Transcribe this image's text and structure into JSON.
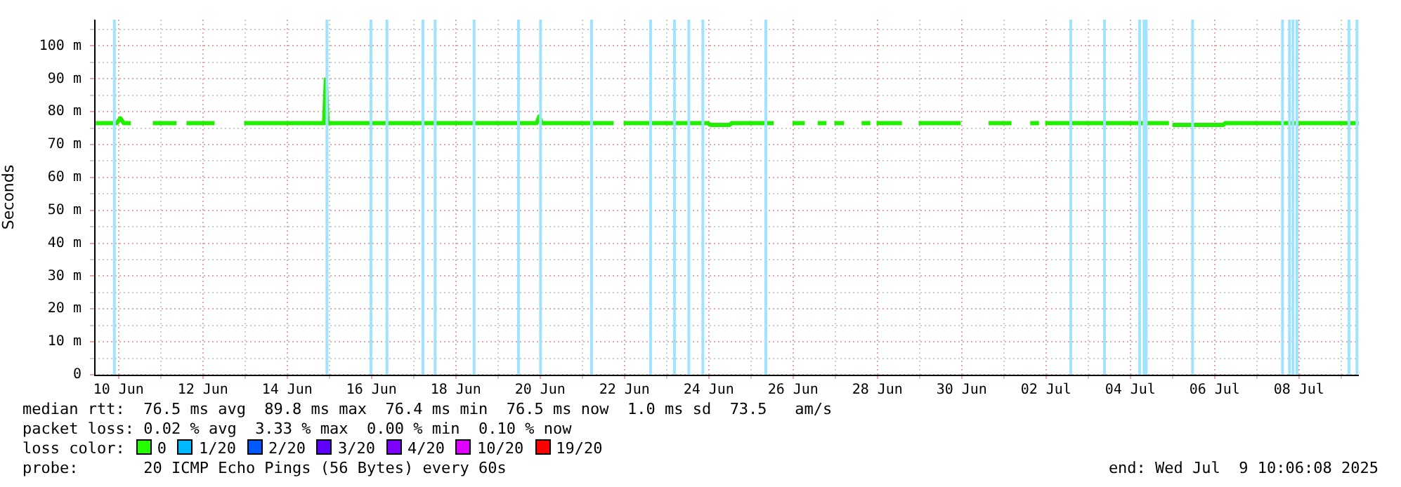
{
  "chart_data": {
    "type": "line",
    "ylabel": "Seconds",
    "xlim": [
      "--06-09T10:06",
      "--07-09T10:06"
    ],
    "xticks": [
      {
        "value": "--06-10",
        "label": "10 Jun"
      },
      {
        "value": "--06-11",
        "label": null
      },
      {
        "value": "--06-12",
        "label": "12 Jun"
      },
      {
        "value": "--06-13",
        "label": null
      },
      {
        "value": "--06-14",
        "label": "14 Jun"
      },
      {
        "value": "--06-15",
        "label": null
      },
      {
        "value": "--06-16",
        "label": "16 Jun"
      },
      {
        "value": "--06-17",
        "label": null
      },
      {
        "value": "--06-18",
        "label": "18 Jun"
      },
      {
        "value": "--06-19",
        "label": null
      },
      {
        "value": "--06-20",
        "label": "20 Jun"
      },
      {
        "value": "--06-21",
        "label": null
      },
      {
        "value": "--06-22",
        "label": "22 Jun"
      },
      {
        "value": "--06-23",
        "label": null
      },
      {
        "value": "--06-24",
        "label": "24 Jun"
      },
      {
        "value": "--06-25",
        "label": null
      },
      {
        "value": "--06-26",
        "label": "26 Jun"
      },
      {
        "value": "--06-27",
        "label": null
      },
      {
        "value": "--06-28",
        "label": "28 Jun"
      },
      {
        "value": "--06-29",
        "label": null
      },
      {
        "value": "--06-30",
        "label": "30 Jun"
      },
      {
        "value": "--07-01",
        "label": null
      },
      {
        "value": "--07-02",
        "label": "02 Jul"
      },
      {
        "value": "--07-03",
        "label": null
      },
      {
        "value": "--07-04",
        "label": "04 Jul"
      },
      {
        "value": "--07-05",
        "label": null
      },
      {
        "value": "--07-06",
        "label": "06 Jul"
      },
      {
        "value": "--07-07",
        "label": null
      },
      {
        "value": "--07-08",
        "label": "08 Jul"
      },
      {
        "value": "--07-09",
        "label": null
      }
    ],
    "ylim": [
      0,
      108
    ],
    "yticks": [
      0,
      {
        "value": 5,
        "label": null
      },
      {
        "value": 10,
        "label": "10 m"
      },
      {
        "value": 15,
        "label": null
      },
      {
        "value": 20,
        "label": "20 m"
      },
      {
        "value": 25,
        "label": null
      },
      {
        "value": 30,
        "label": "30 m"
      },
      {
        "value": 35,
        "label": null
      },
      {
        "value": 40,
        "label": "40 m"
      },
      {
        "value": 45,
        "label": null
      },
      {
        "value": 50,
        "label": "50 m"
      },
      {
        "value": 55,
        "label": null
      },
      {
        "value": 60,
        "label": "60 m"
      },
      {
        "value": 65,
        "label": null
      },
      {
        "value": 70,
        "label": "70 m"
      },
      {
        "value": 75,
        "label": null
      },
      {
        "value": 80,
        "label": "80 m"
      },
      {
        "value": 85,
        "label": null
      },
      {
        "value": 90,
        "label": "90 m"
      },
      {
        "value": 95,
        "label": null
      },
      {
        "value": 100,
        "label": "100 m"
      },
      {
        "value": 105,
        "label": null
      }
    ],
    "grid": true,
    "series": [
      {
        "color": "#22ee00",
        "x": [
          "--06-09T11:00",
          "--06-09T23:00",
          "--06-10T01:00",
          "--06-10T03:00",
          "--06-10T07:00",
          "--06-10T12:00",
          "--06-10T19:30",
          "--06-11T09:00",
          "--06-11T11:00",
          "--06-11T14:40",
          "--06-12T06:40",
          "--06-12T12:00",
          "--06-12T23:30",
          "--06-14T21:00",
          "--06-14T22:00",
          "--06-14T23:00",
          "--06-19T22:00",
          "--06-19T23:30",
          "--06-20T01:00",
          "--06-21T17:50",
          "--06-21T20:00",
          "--06-21T23:30",
          "--06-23T23:30",
          "--06-24T01:00",
          "--06-24T12:00",
          "--06-24T13:00",
          "--06-25T13:00",
          "--06-25T18:00",
          "--06-25T23:40",
          "--06-26T06:40",
          "--06-26T11:00",
          "--06-26T14:00",
          "--06-26T19:00",
          "--06-26T21:00",
          "--06-26T23:30",
          "--06-27T05:00",
          "--06-27T11:00",
          "--06-27T15:00",
          "--06-27T20:00",
          "--06-27T21:30",
          "--06-27T23:30",
          "--06-28T14:00",
          "--06-28T18:00",
          "--06-28T23:30",
          "--06-29T23:30",
          "--06-30T08:00",
          "--06-30T15:20",
          "--07-01T04:20",
          "--07-01T10:00",
          "--07-01T15:00",
          "--07-01T20:00",
          "--07-01T21:30",
          "--07-01T23:30",
          "--07-04T22:00",
          "--07-04T23:00",
          "--07-05T00:00",
          "--07-06T05:00",
          "--07-06T06:00",
          "--07-09T10:00"
        ],
        "values": [
          76.5,
          76.5,
          78,
          76.5,
          76.5,
          null,
          76.5,
          76.5,
          null,
          76.5,
          76.5,
          null,
          76.5,
          76.5,
          89.8,
          76.5,
          76.5,
          78.5,
          76.5,
          76.5,
          null,
          76.5,
          76.5,
          76,
          76,
          76.5,
          76.5,
          null,
          76.5,
          76.5,
          null,
          76.5,
          76.5,
          null,
          76.5,
          76.5,
          null,
          76.5,
          76.5,
          null,
          76.5,
          76.5,
          null,
          76.5,
          76.5,
          null,
          76.5,
          76.5,
          null,
          76.5,
          76.5,
          null,
          76.5,
          76.5,
          null,
          76,
          76,
          76.5,
          76.5
        ]
      }
    ],
    "ref_lines": [
      {
        "axis": "x",
        "value": "--06-09T21:36",
        "color": "#9fe3ff"
      },
      {
        "axis": "x",
        "value": "--06-14T22:38",
        "color": "#9fe3ff"
      },
      {
        "axis": "x",
        "value": "--06-15T23:41",
        "color": "#9fe3ff"
      },
      {
        "axis": "x",
        "value": "--06-16T08:48",
        "color": "#9fe3ff"
      },
      {
        "axis": "x",
        "value": "--06-17T05:17",
        "color": "#9fe3ff"
      },
      {
        "axis": "x",
        "value": "--06-17T12:14",
        "color": "#9fe3ff"
      },
      {
        "axis": "x",
        "value": "--06-18T10:24",
        "color": "#9fe3ff"
      },
      {
        "axis": "x",
        "value": "--06-19T11:41",
        "color": "#9fe3ff"
      },
      {
        "axis": "x",
        "value": "--06-20T00:14",
        "color": "#9fe3ff"
      },
      {
        "axis": "x",
        "value": "--06-21T05:17",
        "color": "#9fe3ff"
      },
      {
        "axis": "x",
        "value": "--06-22T14:53",
        "color": "#9fe3ff"
      },
      {
        "axis": "x",
        "value": "--06-23T04:29",
        "color": "#9fe3ff"
      },
      {
        "axis": "x",
        "value": "--06-23T12:39",
        "color": "#9fe3ff"
      },
      {
        "axis": "x",
        "value": "--06-23T20:38",
        "color": "#9fe3ff"
      },
      {
        "axis": "x",
        "value": "--06-25T08:29",
        "color": "#9fe3ff"
      },
      {
        "axis": "x",
        "value": "--07-02T14:05",
        "color": "#9fe3ff"
      },
      {
        "axis": "x",
        "value": "--07-03T09:17",
        "color": "#9fe3ff"
      },
      {
        "axis": "x",
        "value": "--07-04T05:17",
        "color": "#9fe3ff"
      },
      {
        "axis": "x",
        "value": "--07-04T07:50",
        "color": "#9fe3ff"
      },
      {
        "axis": "x",
        "value": "--07-04T09:02",
        "color": "#9fe3ff"
      },
      {
        "axis": "x",
        "value": "--07-05T11:26",
        "color": "#9fe3ff"
      },
      {
        "axis": "x",
        "value": "--07-07T14:38",
        "color": "#9fe3ff"
      },
      {
        "axis": "x",
        "value": "--07-07T18:38",
        "color": "#9fe3ff"
      },
      {
        "axis": "x",
        "value": "--07-07T20:38",
        "color": "#9fe3ff"
      },
      {
        "axis": "x",
        "value": "--07-07T22:53",
        "color": "#9fe3ff"
      },
      {
        "axis": "x",
        "value": "--07-09T04:29",
        "color": "#9fe3ff"
      },
      {
        "axis": "x",
        "value": "--07-09T09:02",
        "color": "#9fe3ff"
      }
    ],
    "annotations": [
      "median rtt:  76.5 ms avg  89.8 ms max  76.4 ms min  76.5 ms now  1.0 ms sd  73.5   am/s",
      "packet loss: 0.02 % avg  3.33 % max  0.00 % min  0.10 % now",
      "loss color:",
      "0",
      "1/20",
      "2/20",
      "3/20",
      "4/20",
      "10/20",
      "19/20",
      "probe:       20 ICMP Echo Pings (56 Bytes) every 60s",
      "end: Wed Jul  9 10:06:08 2025"
    ]
  }
}
